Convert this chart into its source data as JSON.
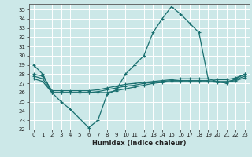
{
  "xlabel": "Humidex (Indice chaleur)",
  "ylabel": "",
  "bg_color": "#cce8e8",
  "line_color": "#1a7070",
  "grid_color": "#ffffff",
  "xlim": [
    -0.5,
    23.5
  ],
  "ylim": [
    22,
    35.6
  ],
  "xticks": [
    0,
    1,
    2,
    3,
    4,
    5,
    6,
    7,
    8,
    9,
    10,
    11,
    12,
    13,
    14,
    15,
    16,
    17,
    18,
    19,
    20,
    21,
    22,
    23
  ],
  "yticks": [
    22,
    23,
    24,
    25,
    26,
    27,
    28,
    29,
    30,
    31,
    32,
    33,
    34,
    35
  ],
  "series": [
    {
      "x": [
        0,
        1,
        2,
        3,
        4,
        5,
        6,
        7,
        8,
        9,
        10,
        11,
        12,
        13,
        14,
        15,
        16,
        17,
        18,
        19,
        20,
        21,
        22,
        23
      ],
      "y": [
        29.0,
        28.0,
        26.0,
        25.0,
        24.2,
        23.2,
        22.2,
        23.0,
        25.8,
        26.3,
        28.0,
        29.0,
        30.0,
        32.5,
        34.0,
        35.3,
        34.5,
        33.5,
        32.5,
        27.5,
        27.2,
        27.0,
        27.5,
        28.0
      ]
    },
    {
      "x": [
        0,
        1,
        2,
        3,
        4,
        5,
        6,
        7,
        8,
        9,
        10,
        11,
        12,
        13,
        14,
        15,
        16,
        17,
        18,
        19,
        20,
        21,
        22,
        23
      ],
      "y": [
        28.0,
        27.8,
        26.2,
        26.2,
        26.2,
        26.2,
        26.2,
        26.3,
        26.5,
        26.7,
        26.9,
        27.0,
        27.1,
        27.2,
        27.3,
        27.4,
        27.5,
        27.5,
        27.5,
        27.5,
        27.4,
        27.4,
        27.6,
        28.0
      ]
    },
    {
      "x": [
        0,
        1,
        2,
        3,
        4,
        5,
        6,
        7,
        8,
        9,
        10,
        11,
        12,
        13,
        14,
        15,
        16,
        17,
        18,
        19,
        20,
        21,
        22,
        23
      ],
      "y": [
        27.8,
        27.5,
        26.0,
        26.0,
        26.0,
        26.0,
        26.0,
        26.1,
        26.3,
        26.5,
        26.7,
        26.8,
        27.0,
        27.1,
        27.2,
        27.3,
        27.3,
        27.3,
        27.3,
        27.3,
        27.2,
        27.2,
        27.4,
        27.8
      ]
    },
    {
      "x": [
        0,
        1,
        2,
        3,
        4,
        5,
        6,
        7,
        8,
        9,
        10,
        11,
        12,
        13,
        14,
        15,
        16,
        17,
        18,
        19,
        20,
        21,
        22,
        23
      ],
      "y": [
        27.5,
        27.2,
        26.0,
        26.0,
        26.0,
        26.0,
        26.0,
        26.0,
        26.0,
        26.2,
        26.4,
        26.6,
        26.8,
        27.0,
        27.1,
        27.2,
        27.2,
        27.2,
        27.2,
        27.2,
        27.1,
        27.1,
        27.3,
        27.6
      ]
    }
  ]
}
